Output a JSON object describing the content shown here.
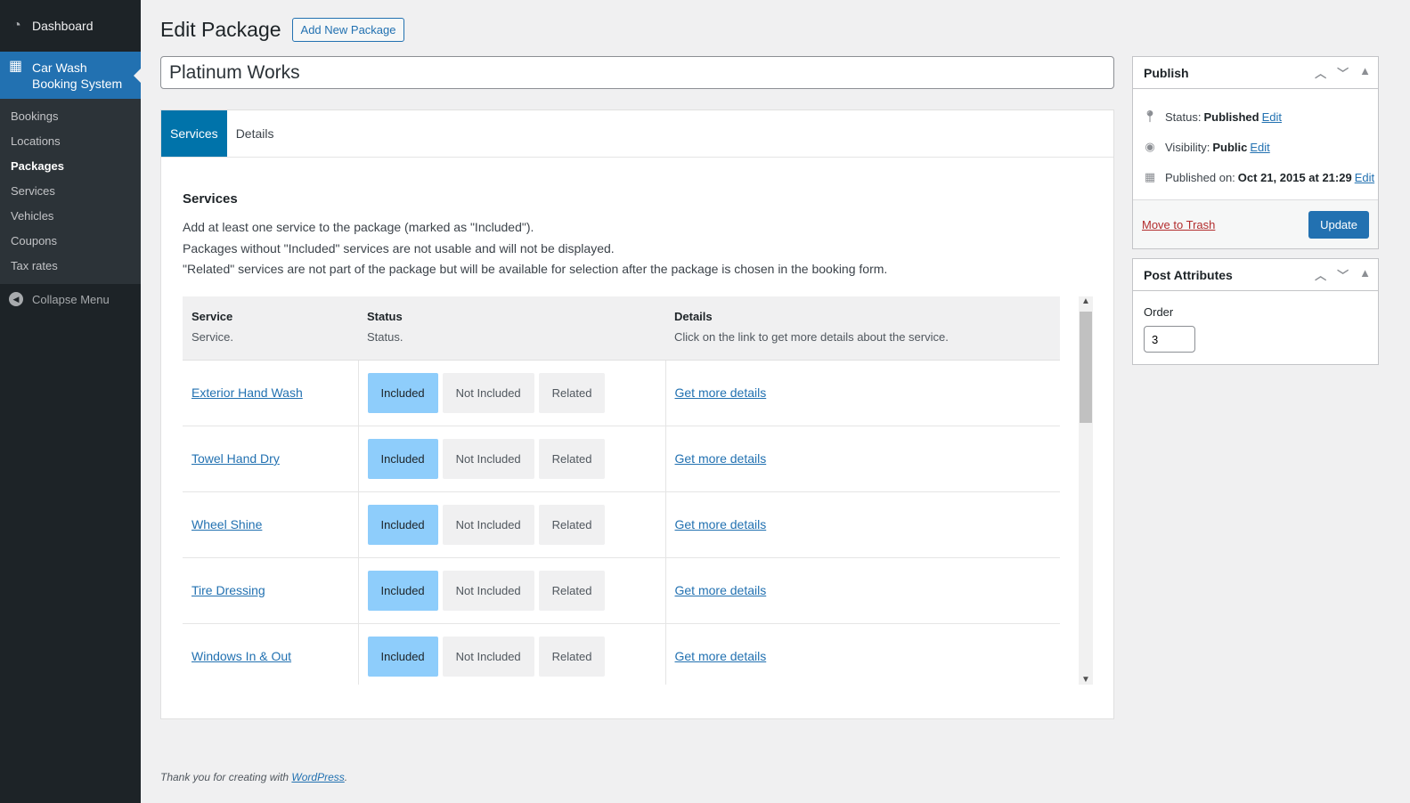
{
  "sidebar": {
    "dashboard": "Dashboard",
    "plugin": "Car Wash Booking System",
    "items": [
      "Bookings",
      "Locations",
      "Packages",
      "Services",
      "Vehicles",
      "Coupons",
      "Tax rates"
    ],
    "collapse": "Collapse Menu"
  },
  "header": {
    "title": "Edit Package",
    "add_new": "Add New Package"
  },
  "post_title": "Platinum Works",
  "tabs": [
    "Services",
    "Details"
  ],
  "services": {
    "heading": "Services",
    "desc": [
      "Add at least one service to the package (marked as \"Included\").",
      "Packages without \"Included\" services are not usable and will not be displayed.",
      "\"Related\" services are not part of the package but will be available for selection after the package is chosen in the booking form."
    ],
    "columns": [
      {
        "title": "Service",
        "sub": "Service."
      },
      {
        "title": "Status",
        "sub": "Status."
      },
      {
        "title": "Details",
        "sub": "Click on the link to get more details about the service."
      }
    ],
    "status_options": [
      "Included",
      "Not Included",
      "Related"
    ],
    "details_link": "Get more details",
    "rows": [
      {
        "name": "Exterior Hand Wash",
        "status": "Included"
      },
      {
        "name": "Towel Hand Dry",
        "status": "Included"
      },
      {
        "name": "Wheel Shine",
        "status": "Included"
      },
      {
        "name": "Tire Dressing",
        "status": "Included"
      },
      {
        "name": "Windows In & Out",
        "status": "Included"
      }
    ]
  },
  "publish": {
    "title": "Publish",
    "status_label": "Status:",
    "status": "Published",
    "visibility_label": "Visibility:",
    "visibility": "Public",
    "published_label": "Published on:",
    "published": "Oct 21, 2015 at 21:29",
    "edit": "Edit",
    "trash": "Move to Trash",
    "update": "Update"
  },
  "attributes": {
    "title": "Post Attributes",
    "order_label": "Order",
    "order": "3"
  },
  "footer": {
    "text": "Thank you for creating with ",
    "link": "WordPress",
    "end": "."
  }
}
